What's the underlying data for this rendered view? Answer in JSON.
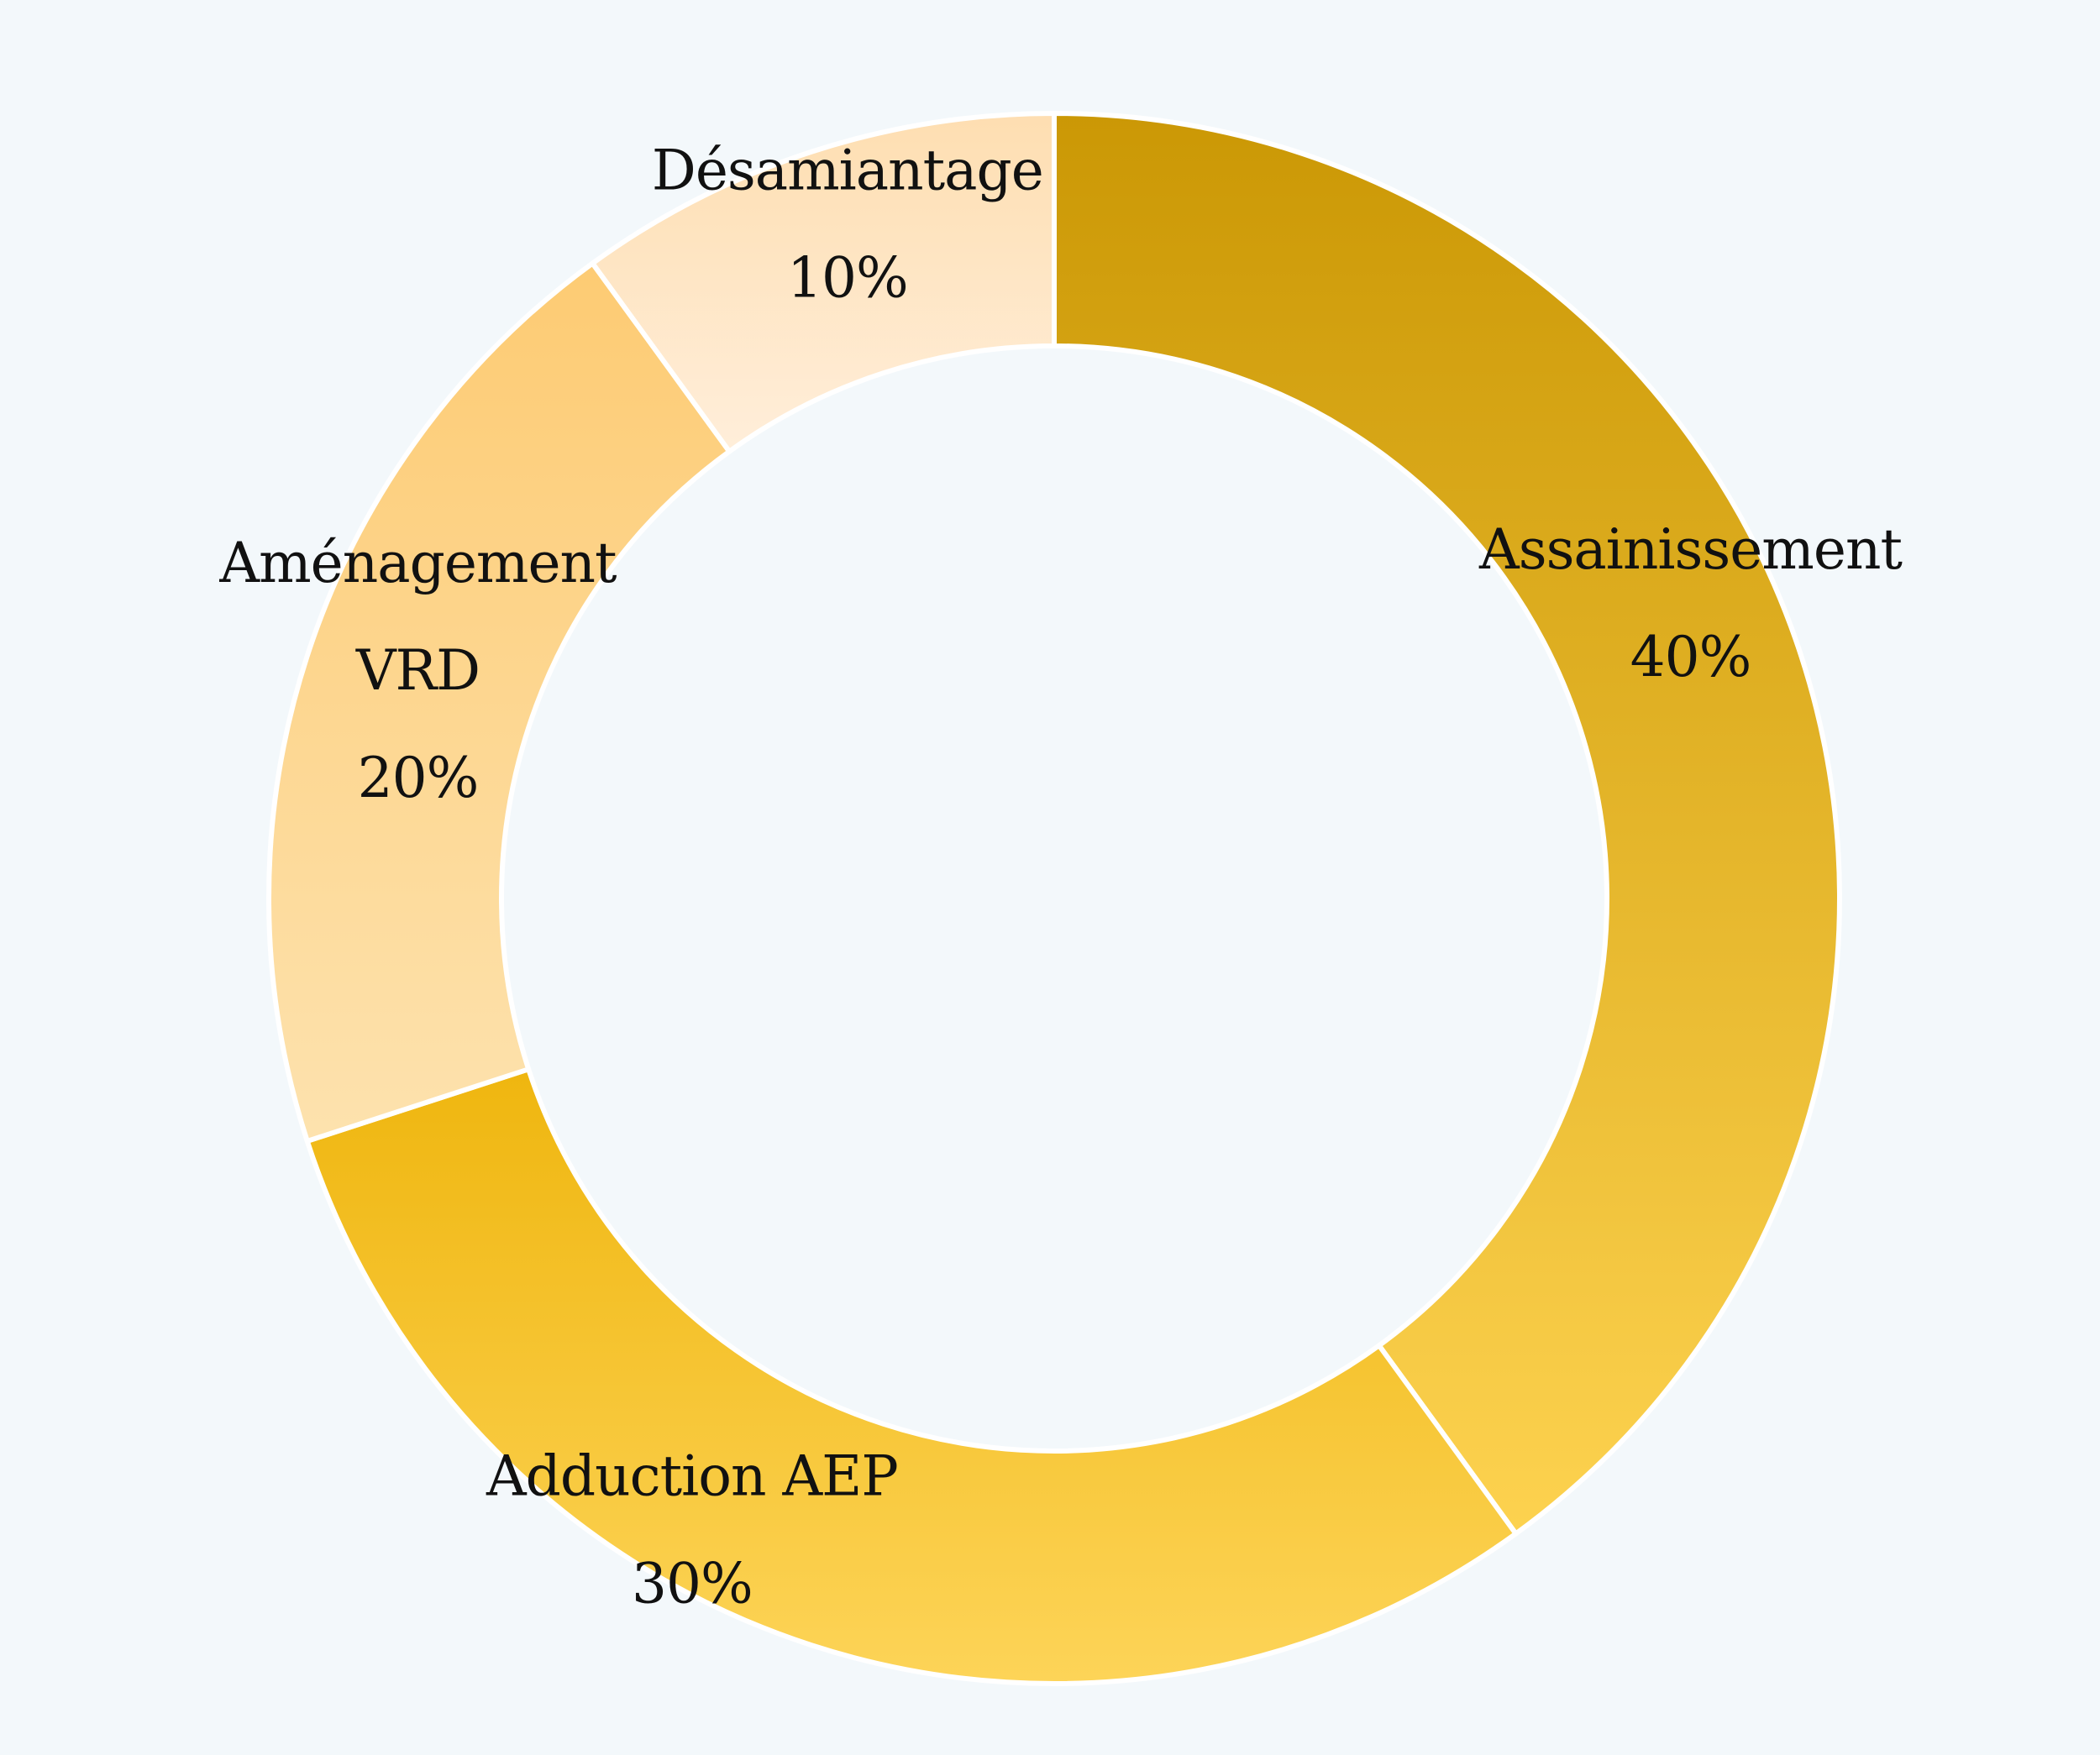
{
  "chart_data": {
    "type": "pie",
    "variant": "donut",
    "title": "",
    "unit": "%",
    "legend": "none",
    "labels": "on-slice",
    "start_angle_deg": 0,
    "direction": "clockwise",
    "slices": [
      {
        "label_lines": [
          "Assainissement"
        ],
        "value": 40,
        "value_label": "40%",
        "color_start": "#cb9805",
        "color_end": "#fdd24f"
      },
      {
        "label_lines": [
          "Adduction AEP"
        ],
        "value": 30,
        "value_label": "30%",
        "color_start": "#efb60f",
        "color_end": "#fdd458"
      },
      {
        "label_lines": [
          "Aménagement",
          "VRD"
        ],
        "value": 20,
        "value_label": "20%",
        "color_start": "#fdcb73",
        "color_end": "#fde2ae"
      },
      {
        "label_lines": [
          "Désamiantage"
        ],
        "value": 10,
        "value_label": "10%",
        "color_start": "#fedeb1",
        "color_end": "#ffeeda"
      }
    ]
  },
  "colors": {
    "background": "#f3f8fb",
    "slice_border": "#ffffff",
    "label_text": "#111111"
  }
}
